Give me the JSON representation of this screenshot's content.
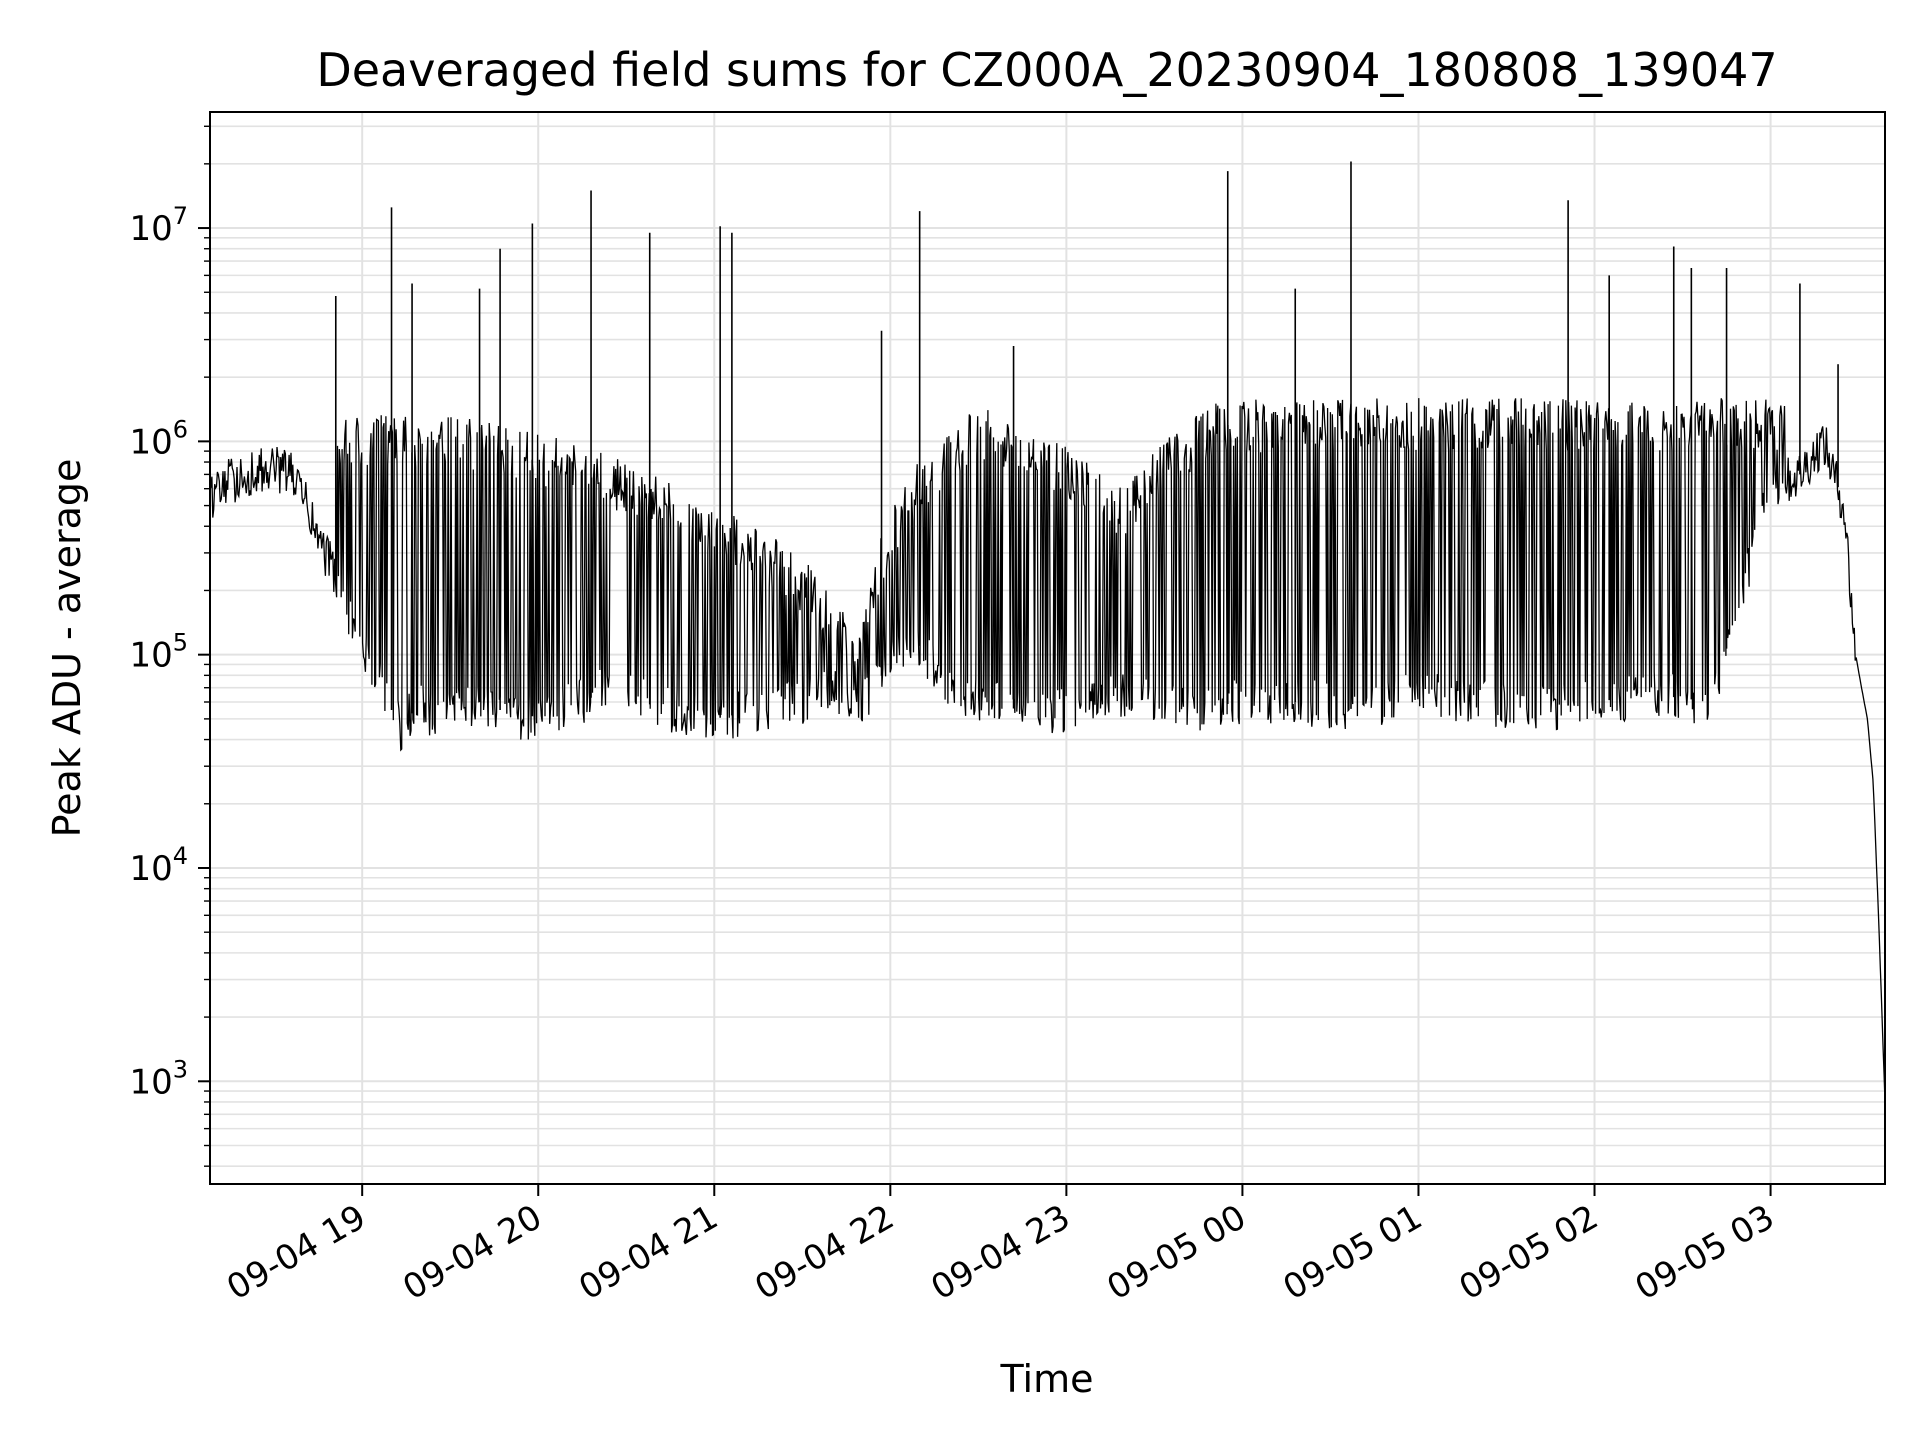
{
  "chart_data": {
    "type": "line",
    "title": "Deaveraged field sums for CZ000A_20230904_180808_139047",
    "xlabel": "Time",
    "ylabel": "Peak ADU - average",
    "yscale": "log",
    "ylim": [
      330,
      35000000
    ],
    "xlim": [
      "2023-09-04 18:08:08",
      "2023-09-05 03:39:00"
    ],
    "grid": true,
    "grid_minor": true,
    "x_tick_labels": [
      "09-04 19",
      "09-04 20",
      "09-04 21",
      "09-04 22",
      "09-04 23",
      "09-05 00",
      "09-05 01",
      "09-05 02",
      "09-05 03"
    ],
    "x_tick_times": [
      "2023-09-04 19:00:00",
      "2023-09-04 20:00:00",
      "2023-09-04 21:00:00",
      "2023-09-04 22:00:00",
      "2023-09-04 23:00:00",
      "2023-09-05 00:00:00",
      "2023-09-05 01:00:00",
      "2023-09-05 02:00:00",
      "2023-09-05 03:00:00"
    ],
    "y_tick_labels": [
      {
        "base": "10",
        "exp": "3",
        "value": 1000
      },
      {
        "base": "10",
        "exp": "4",
        "value": 10000
      },
      {
        "base": "10",
        "exp": "5",
        "value": 100000
      },
      {
        "base": "10",
        "exp": "6",
        "value": 1000000
      },
      {
        "base": "10",
        "exp": "7",
        "value": 10000000
      }
    ],
    "line_color": "#000000",
    "series": [
      {
        "x": [
          "2023-09-04 18:08:08",
          "2023-09-04 18:15",
          "2023-09-04 18:22",
          "2023-09-04 18:30",
          "2023-09-04 18:36",
          "2023-09-04 18:40",
          "2023-09-04 18:45",
          "2023-09-04 18:50",
          "2023-09-04 18:53",
          "2023-09-04 18:56",
          "2023-09-04 19:00",
          "2023-09-04 19:05",
          "2023-09-04 19:10",
          "2023-09-04 19:13",
          "2023-09-04 19:20",
          "2023-09-04 19:25",
          "2023-09-04 19:30",
          "2023-09-04 19:40",
          "2023-09-04 19:47",
          "2023-09-04 19:55",
          "2023-09-04 20:05",
          "2023-09-04 20:15",
          "2023-09-04 20:25",
          "2023-09-04 20:35",
          "2023-09-04 20:45",
          "2023-09-04 21:00",
          "2023-09-04 21:15",
          "2023-09-04 21:30",
          "2023-09-04 21:40",
          "2023-09-04 21:50",
          "2023-09-04 22:00",
          "2023-09-04 22:10",
          "2023-09-04 22:20",
          "2023-09-04 22:30",
          "2023-09-04 22:45",
          "2023-09-04 23:00",
          "2023-09-04 23:20",
          "2023-09-04 23:40",
          "2023-09-05 00:00",
          "2023-09-05 00:20",
          "2023-09-05 00:40",
          "2023-09-05 01:00",
          "2023-09-05 01:20",
          "2023-09-05 01:40",
          "2023-09-05 02:00",
          "2023-09-05 02:20",
          "2023-09-05 02:40",
          "2023-09-05 03:00",
          "2023-09-05 03:10",
          "2023-09-05 03:18",
          "2023-09-05 03:25",
          "2023-09-05 03:29",
          "2023-09-05 03:31",
          "2023-09-05 03:33",
          "2023-09-05 03:35",
          "2023-09-05 03:37",
          "2023-09-05 03:39"
        ],
        "y": [
          550000,
          650000,
          700000,
          750000,
          700000,
          550000,
          350000,
          250000,
          180000,
          150000,
          110000,
          80000,
          55000,
          45000,
          60000,
          50000,
          55000,
          60000,
          55000,
          50000,
          55000,
          60000,
          70000,
          60000,
          55000,
          50000,
          55000,
          60000,
          70000,
          60000,
          90000,
          110000,
          70000,
          60000,
          55000,
          55000,
          65000,
          55000,
          60000,
          60000,
          55000,
          65000,
          60000,
          55000,
          60000,
          65000,
          60000,
          600000,
          700000,
          1000000,
          500000,
          100000,
          70000,
          50000,
          25000,
          5000,
          800
        ]
      }
    ],
    "spikes": [
      {
        "t": "2023-09-04 18:51",
        "y": 4800000
      },
      {
        "t": "2023-09-04 19:10",
        "y": 12500000
      },
      {
        "t": "2023-09-04 19:17",
        "y": 5500000
      },
      {
        "t": "2023-09-04 19:40",
        "y": 5200000
      },
      {
        "t": "2023-09-04 19:47",
        "y": 8000000
      },
      {
        "t": "2023-09-04 19:58",
        "y": 10500000
      },
      {
        "t": "2023-09-04 20:18",
        "y": 15000000
      },
      {
        "t": "2023-09-04 20:38",
        "y": 9500000
      },
      {
        "t": "2023-09-04 21:02",
        "y": 10200000
      },
      {
        "t": "2023-09-04 21:06",
        "y": 9500000
      },
      {
        "t": "2023-09-04 21:57",
        "y": 3300000
      },
      {
        "t": "2023-09-04 22:10",
        "y": 12000000
      },
      {
        "t": "2023-09-04 22:42",
        "y": 2800000
      },
      {
        "t": "2023-09-04 23:55",
        "y": 18500000
      },
      {
        "t": "2023-09-05 00:18",
        "y": 5200000
      },
      {
        "t": "2023-09-05 00:37",
        "y": 20500000
      },
      {
        "t": "2023-09-05 01:51",
        "y": 13500000
      },
      {
        "t": "2023-09-05 02:05",
        "y": 6000000
      },
      {
        "t": "2023-09-05 02:27",
        "y": 8200000
      },
      {
        "t": "2023-09-05 02:33",
        "y": 6500000
      },
      {
        "t": "2023-09-05 02:45",
        "y": 6500000
      },
      {
        "t": "2023-09-05 03:10",
        "y": 5500000
      },
      {
        "t": "2023-09-05 03:23",
        "y": 2300000
      }
    ]
  }
}
